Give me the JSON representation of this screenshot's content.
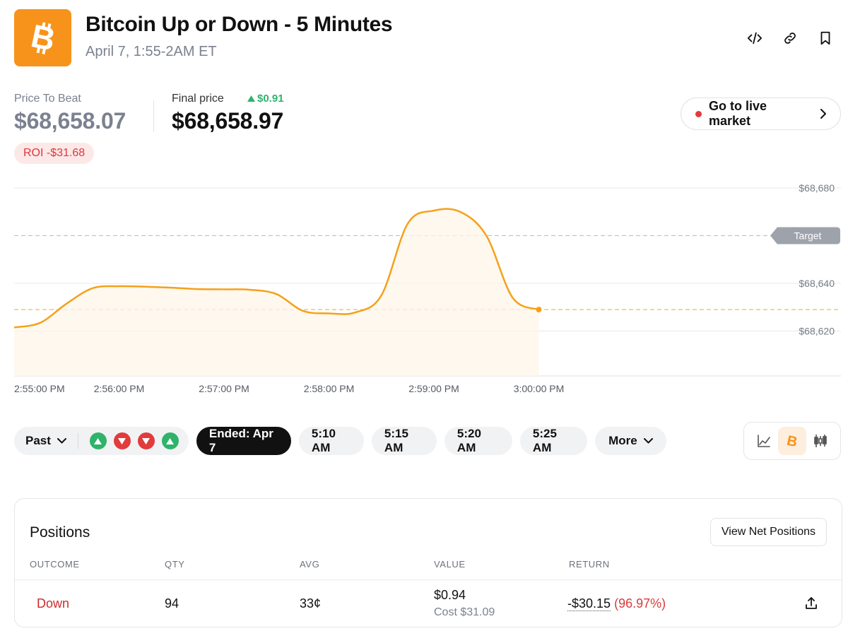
{
  "header": {
    "title": "Bitcoin Up or Down - 5 Minutes",
    "subtitle": "April 7, 1:55-2AM ET",
    "actions": [
      "embed-icon",
      "link-icon",
      "bookmark-icon"
    ]
  },
  "prices": {
    "price_to_beat_label": "Price To Beat",
    "price_to_beat_value": "$68,658.07",
    "final_price_label": "Final price",
    "final_price_delta": "$0.91",
    "final_price_value": "$68,658.97",
    "roi": "ROI -$31.68"
  },
  "live_button": {
    "label": "Go to live market"
  },
  "colors": {
    "accent": "#f7931a",
    "up": "#2fb36b",
    "down": "#e23b3b"
  },
  "chart_data": {
    "type": "line",
    "y_ticks": [
      {
        "value": 68680,
        "label": "$68,680"
      },
      {
        "value": 68640,
        "label": "$68,640"
      },
      {
        "value": 68620,
        "label": "$68,620"
      }
    ],
    "x_ticks": [
      {
        "value": 0,
        "label": "2:55:00 PM"
      },
      {
        "value": 60,
        "label": "2:56:00 PM"
      },
      {
        "value": 120,
        "label": "2:57:00 PM"
      },
      {
        "value": 180,
        "label": "2:58:00 PM"
      },
      {
        "value": 240,
        "label": "2:59:00 PM"
      },
      {
        "value": 300,
        "label": "3:00:00 PM"
      }
    ],
    "target": {
      "value": 68660,
      "label": "Target"
    },
    "final_reference_value": 68629,
    "series": [
      {
        "x": [
          0,
          15,
          30,
          45,
          60,
          75,
          90,
          105,
          120,
          135,
          150,
          165,
          180,
          195,
          210,
          225,
          240,
          255,
          270,
          285,
          300
        ],
        "y": [
          68621.5,
          68623.5,
          68631.5,
          68638,
          68638.8,
          68638.6,
          68638.2,
          68637.6,
          68637.5,
          68637.3,
          68635.5,
          68628.5,
          68627.4,
          68627.8,
          68635,
          68665,
          68670.5,
          68670,
          68660,
          68634,
          68629
        ]
      }
    ],
    "grid": true
  },
  "controls": {
    "past_label": "Past",
    "history": [
      "up",
      "down",
      "down",
      "up"
    ],
    "periods": [
      "Ended: Apr 7",
      "5:10 AM",
      "5:15 AM",
      "5:20 AM",
      "5:25 AM"
    ],
    "more_label": "More",
    "view_modes": [
      "line-chart-icon",
      "bitcoin-icon",
      "candlestick-icon"
    ]
  },
  "positions": {
    "title": "Positions",
    "net_button": "View Net Positions",
    "columns": [
      "OUTCOME",
      "QTY",
      "AVG",
      "VALUE",
      "RETURN"
    ],
    "rows": [
      {
        "outcome": "Down",
        "qty": "94",
        "avg": "33¢",
        "value": "$0.94",
        "cost": "Cost $31.09",
        "return": "-$30.15",
        "return_pct": "(96.97%)"
      }
    ]
  }
}
